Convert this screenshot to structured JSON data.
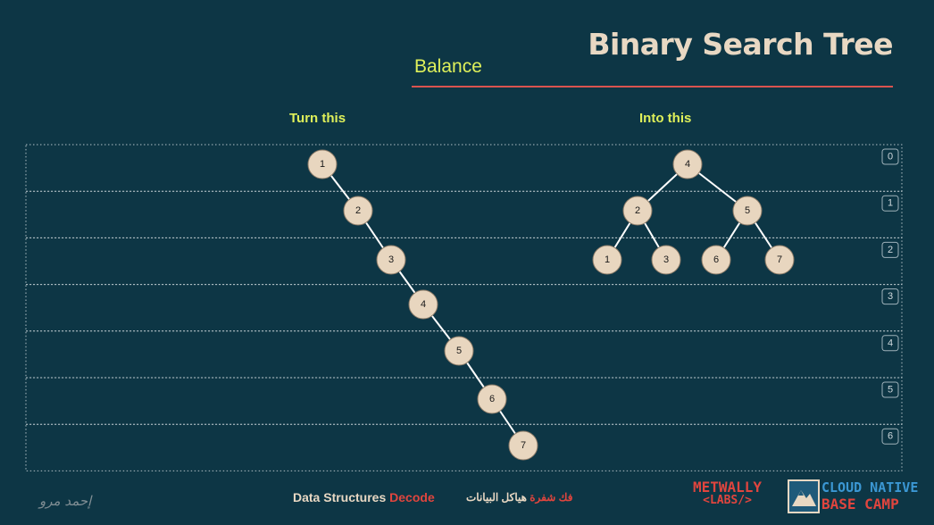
{
  "header": {
    "title": "Binary Search Tree",
    "subtitle": "Balance"
  },
  "captions": {
    "left": "Turn this",
    "right": "Into this"
  },
  "levels": [
    "0",
    "1",
    "2",
    "3",
    "4",
    "5",
    "6"
  ],
  "trees": {
    "unbalanced": {
      "nodes": [
        {
          "id": "u1",
          "label": "1",
          "level": 0
        },
        {
          "id": "u2",
          "label": "2",
          "level": 1
        },
        {
          "id": "u3",
          "label": "3",
          "level": 2
        },
        {
          "id": "u4",
          "label": "4",
          "level": 3
        },
        {
          "id": "u5",
          "label": "5",
          "level": 4
        },
        {
          "id": "u6",
          "label": "6",
          "level": 5
        },
        {
          "id": "u7",
          "label": "7",
          "level": 6
        }
      ],
      "edges": [
        [
          "u1",
          "u2"
        ],
        [
          "u2",
          "u3"
        ],
        [
          "u3",
          "u4"
        ],
        [
          "u4",
          "u5"
        ],
        [
          "u5",
          "u6"
        ],
        [
          "u6",
          "u7"
        ]
      ]
    },
    "balanced": {
      "nodes": [
        {
          "id": "b4",
          "label": "4",
          "level": 0
        },
        {
          "id": "b2",
          "label": "2",
          "level": 1
        },
        {
          "id": "b5",
          "label": "5",
          "level": 1
        },
        {
          "id": "b1",
          "label": "1",
          "level": 2
        },
        {
          "id": "b3",
          "label": "3",
          "level": 2
        },
        {
          "id": "b6",
          "label": "6",
          "level": 2
        },
        {
          "id": "b7",
          "label": "7",
          "level": 2
        }
      ],
      "edges": [
        [
          "b4",
          "b2"
        ],
        [
          "b4",
          "b5"
        ],
        [
          "b2",
          "b1"
        ],
        [
          "b2",
          "b3"
        ],
        [
          "b5",
          "b6"
        ],
        [
          "b5",
          "b7"
        ]
      ]
    }
  },
  "footer": {
    "signature": "إحمد مرو",
    "brand_text": "Data Structures ",
    "brand_accent": "Decode",
    "arabic_text": "هياكل البيانات",
    "arabic_accent": "فك شفرة ",
    "logo1_line1": "METWALLY",
    "logo1_line2": "<LABS/>",
    "logo2_line1": "CLOUD NATIVE",
    "logo2_line2": "BASE CAMP"
  },
  "colors": {
    "background": "#0d3645",
    "title": "#e8d8c3",
    "accent_yellow": "#dff05a",
    "accent_red": "#d9534f",
    "node_fill": "#e8d6bf",
    "edge": "#ffffff"
  }
}
